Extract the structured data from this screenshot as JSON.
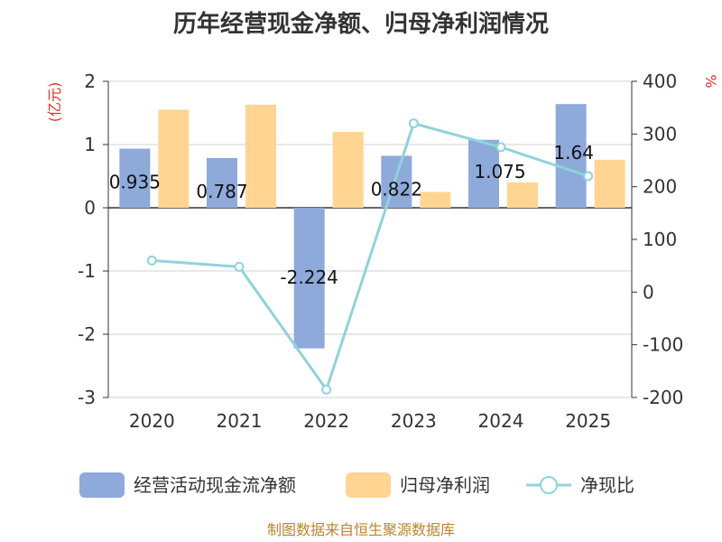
{
  "chart_data": {
    "type": "bar",
    "title": "历年经营现金净额、归母净利润情况",
    "categories": [
      "2020",
      "2021",
      "2022",
      "2023",
      "2024",
      "2025"
    ],
    "series": [
      {
        "name": "经营活动现金流净额",
        "axis": "left",
        "color": "#8eaadb",
        "values": [
          0.935,
          0.787,
          -2.224,
          0.822,
          1.075,
          1.64
        ],
        "labels": [
          "0.935",
          "0.787",
          "-2.224",
          "0.822",
          "1.075",
          "1.64"
        ]
      },
      {
        "name": "归母净利润",
        "axis": "left",
        "color": "#ffd591",
        "values": [
          1.55,
          1.63,
          1.2,
          0.25,
          0.4,
          0.76
        ]
      },
      {
        "name": "净现比",
        "axis": "right",
        "type": "line",
        "color": "#8fd3dc",
        "values": [
          60,
          48,
          -185,
          320,
          275,
          220
        ]
      }
    ],
    "y_left": {
      "unit": "(亿元)",
      "min": -3,
      "max": 2,
      "ticks": [
        "2",
        "1",
        "0",
        "-1",
        "-2",
        "-3"
      ],
      "tick_values": [
        2,
        1,
        0,
        -1,
        -2,
        -3
      ]
    },
    "y_right": {
      "unit": "%",
      "min": -200,
      "max": 400,
      "ticks": [
        "400",
        "300",
        "200",
        "100",
        "0",
        "-100",
        "-200"
      ],
      "tick_values": [
        400,
        300,
        200,
        100,
        0,
        -100,
        -200
      ]
    },
    "grid": true,
    "legend_position": "bottom",
    "source": "制图数据来自恒生聚源数据库"
  }
}
